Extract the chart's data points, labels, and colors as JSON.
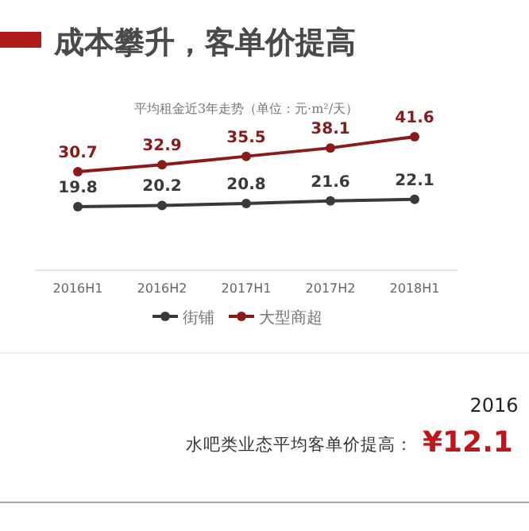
{
  "chart_data": {
    "type": "line",
    "title": "成本攀升，客单价提高",
    "subtitle": "平均租金近3年走势（单位：元·m²/天）",
    "categories": [
      "2016H1",
      "2016H2",
      "2017H1",
      "2017H2",
      "2018H1"
    ],
    "series": [
      {
        "name": "街铺",
        "color": "#3a3a3a",
        "values": [
          19.8,
          20.2,
          20.8,
          21.6,
          22.1
        ]
      },
      {
        "name": "大型商超",
        "color": "#8b1a1a",
        "values": [
          30.7,
          32.9,
          35.5,
          38.1,
          41.6
        ]
      }
    ],
    "data_labels": true,
    "marker": "circle",
    "legend": "bottom",
    "grid": false,
    "annotations": [
      "2016",
      "水吧类业态平均客单价提高：",
      "¥12.1"
    ]
  }
}
